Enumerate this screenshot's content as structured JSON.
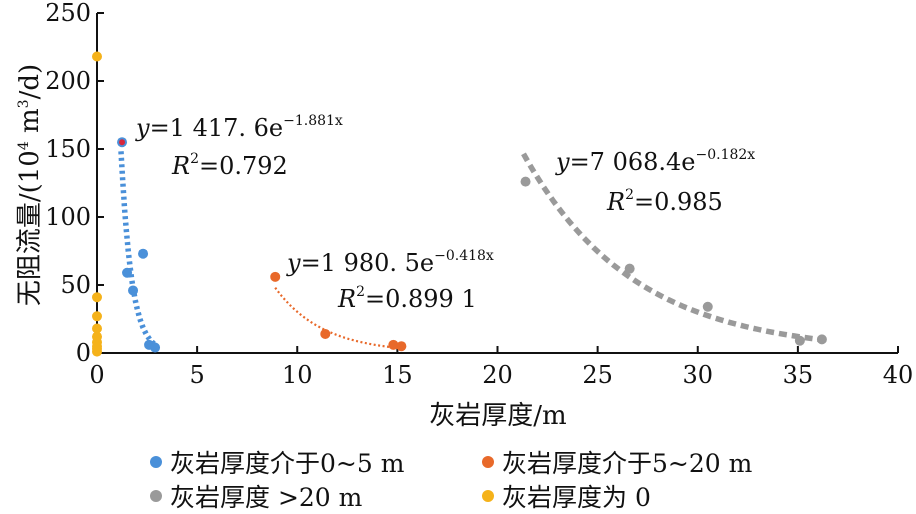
{
  "chart_data": {
    "type": "scatter",
    "xlabel": "灰岩厚度/m",
    "ylabel_main": "无阻流量/(10",
    "ylabel_exp": "4",
    "ylabel_mid": " m",
    "ylabel_exp2": "3",
    "ylabel_end": "/d)",
    "xlim": [
      0,
      40
    ],
    "ylim": [
      0,
      250
    ],
    "xticks": [
      0,
      5,
      10,
      15,
      20,
      25,
      30,
      35,
      40
    ],
    "yticks": [
      0,
      50,
      100,
      150,
      200,
      250
    ],
    "grid": false,
    "legend_position": "bottom",
    "series": [
      {
        "name": "灰岩厚度介于0~5 m",
        "color": "#4a90d9",
        "points": [
          [
            1.25,
            155
          ],
          [
            2.3,
            73
          ],
          [
            1.5,
            59
          ],
          [
            1.8,
            46
          ],
          [
            2.6,
            6
          ],
          [
            2.9,
            4
          ]
        ],
        "fit": {
          "a": 1417.6,
          "b": -1.881,
          "x_range": [
            1.2,
            2.95
          ],
          "style": "thick-dotted"
        },
        "equation": {
          "prefix": "y",
          "eq": "=1 417. 6e",
          "exp": "−1.881x",
          "r2_label": "R",
          "r2_exp": "2",
          "r2_value": "=0.792"
        }
      },
      {
        "name": "灰岩厚度介于5~20 m",
        "color": "#e8692a",
        "points": [
          [
            8.9,
            56
          ],
          [
            11.4,
            14
          ],
          [
            14.8,
            6
          ],
          [
            15.2,
            5
          ]
        ],
        "fit": {
          "a": 1980.5,
          "b": -0.418,
          "x_range": [
            8.9,
            15.2
          ],
          "style": "thin-dotted"
        },
        "equation": {
          "prefix": "y",
          "eq": "=1 980. 5e",
          "exp": "−0.418x",
          "r2_label": "R",
          "r2_exp": "2",
          "r2_value": "=0.899 1"
        }
      },
      {
        "name": "灰岩厚度 >20 m",
        "color": "#9a9a9a",
        "points": [
          [
            21.4,
            126
          ],
          [
            26.6,
            62
          ],
          [
            30.5,
            34
          ],
          [
            35.1,
            9
          ],
          [
            36.2,
            10
          ]
        ],
        "fit": {
          "a": 7068.4,
          "b": -0.182,
          "x_range": [
            21.3,
            36.3
          ],
          "style": "thick-dashed"
        },
        "equation": {
          "prefix": "y",
          "eq": "=7 068.4e",
          "exp": "−0.182x",
          "r2_label": "R",
          "r2_exp": "2",
          "r2_value": "=0.985"
        }
      },
      {
        "name": "灰岩厚度为 0",
        "color": "#f5b21a",
        "points": [
          [
            0,
            218
          ],
          [
            0,
            41
          ],
          [
            0,
            27
          ],
          [
            0,
            18
          ],
          [
            0,
            12
          ],
          [
            0,
            8
          ],
          [
            0,
            5
          ],
          [
            0,
            3
          ],
          [
            0,
            1
          ]
        ]
      }
    ]
  }
}
